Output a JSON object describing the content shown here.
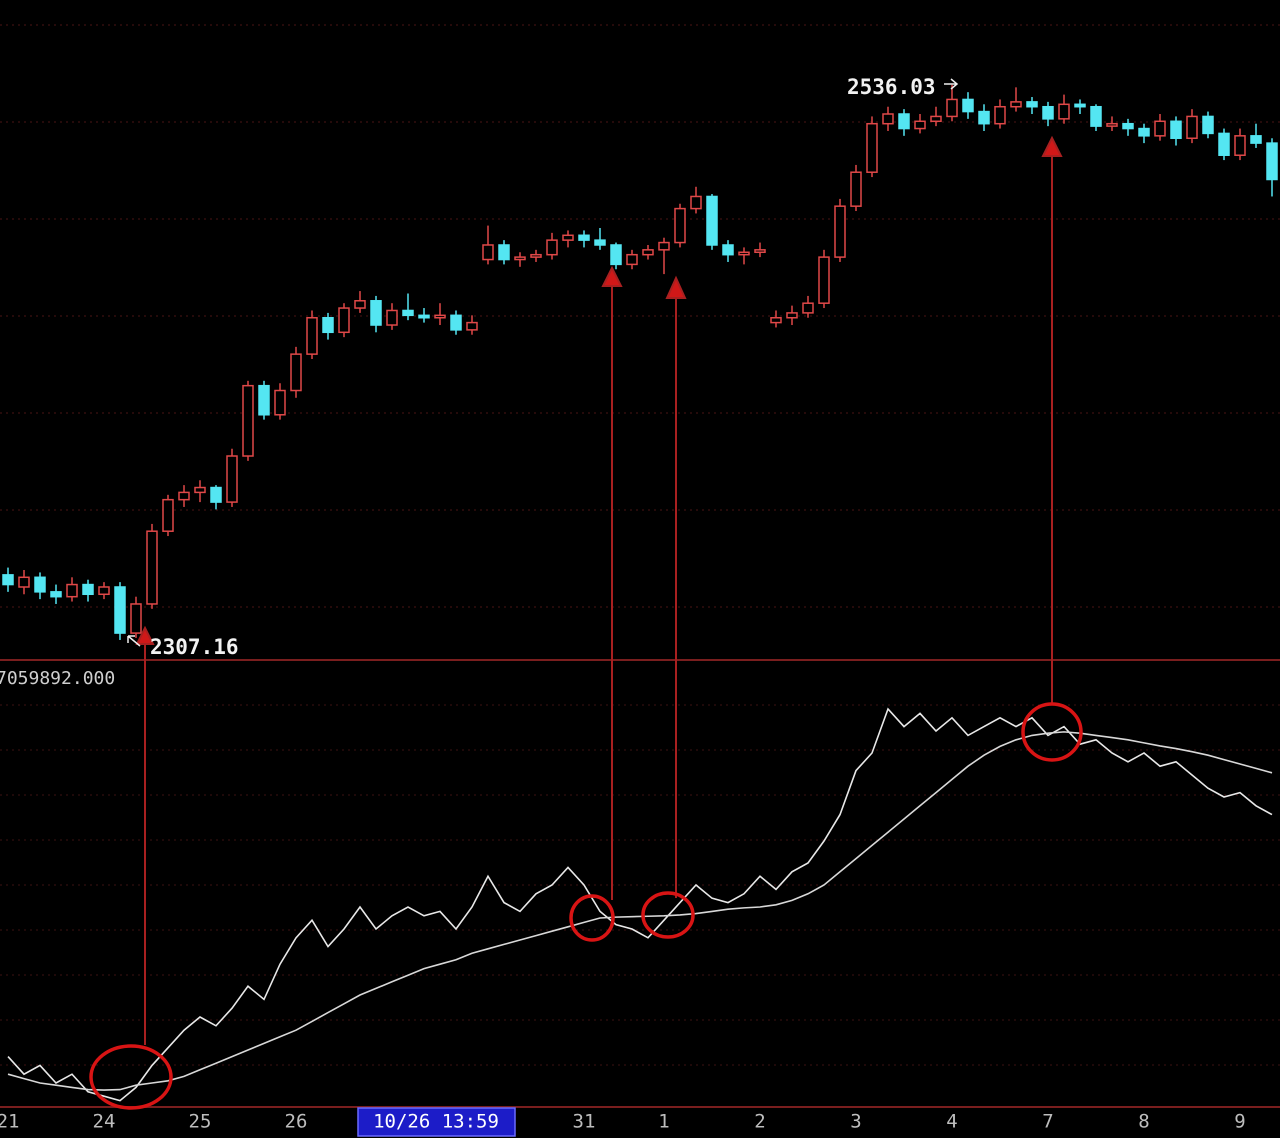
{
  "chart_data": {
    "type": "candlestick",
    "ylim": [
      2298.9,
      2571
    ],
    "y2lim": [
      0,
      100
    ],
    "up_color": "#e04848",
    "down_color": "#54e6f2",
    "categories": [
      "21",
      null,
      null,
      null,
      null,
      null,
      "24",
      null,
      null,
      null,
      null,
      null,
      "25",
      null,
      null,
      null,
      null,
      null,
      "26",
      null,
      null,
      null,
      null,
      null,
      null,
      null,
      null,
      null,
      null,
      null,
      null,
      null,
      null,
      null,
      null,
      null,
      "31",
      null,
      null,
      null,
      null,
      "1",
      null,
      null,
      null,
      null,
      null,
      "2",
      null,
      null,
      null,
      null,
      null,
      "3",
      null,
      null,
      null,
      null,
      null,
      "4",
      null,
      null,
      null,
      null,
      null,
      "7",
      null,
      null,
      null,
      null,
      null,
      "8",
      null,
      null,
      null,
      null,
      null,
      "9",
      null,
      null
    ],
    "cursor_label": "10/26 13:59",
    "indicator_readout": "7059892.000",
    "ohlc": [
      [
        2334,
        2337,
        2327,
        2330
      ],
      [
        2329,
        2336,
        2326,
        2333
      ],
      [
        2333,
        2335,
        2324,
        2327
      ],
      [
        2327,
        2330,
        2322,
        2325
      ],
      [
        2325,
        2333,
        2323,
        2330
      ],
      [
        2330,
        2332,
        2323,
        2326
      ],
      [
        2326,
        2331,
        2324,
        2329
      ],
      [
        2329,
        2331,
        2307.16,
        2310
      ],
      [
        2310,
        2325,
        2308,
        2322
      ],
      [
        2322,
        2355,
        2320,
        2352
      ],
      [
        2352,
        2367,
        2350,
        2365
      ],
      [
        2365,
        2371,
        2362,
        2368
      ],
      [
        2368,
        2373,
        2364,
        2370
      ],
      [
        2370,
        2371,
        2361,
        2364
      ],
      [
        2364,
        2386,
        2362,
        2383
      ],
      [
        2383,
        2414,
        2381,
        2412
      ],
      [
        2412,
        2414,
        2398,
        2400
      ],
      [
        2400,
        2413,
        2398,
        2410
      ],
      [
        2410,
        2428,
        2407,
        2425
      ],
      [
        2425,
        2443,
        2423,
        2440
      ],
      [
        2440,
        2442,
        2431,
        2434
      ],
      [
        2434,
        2446,
        2432,
        2444
      ],
      [
        2444,
        2451,
        2442,
        2447
      ],
      [
        2447,
        2449,
        2434,
        2437
      ],
      [
        2437,
        2446,
        2435,
        2443
      ],
      [
        2443,
        2450,
        2439,
        2441
      ],
      [
        2441,
        2444,
        2438,
        2440
      ],
      [
        2440,
        2446,
        2437,
        2441
      ],
      [
        2441,
        2443,
        2433,
        2435
      ],
      [
        2435,
        2441,
        2433,
        2438
      ],
      [
        2464,
        2478,
        2462,
        2470
      ],
      [
        2470,
        2472,
        2462,
        2464
      ],
      [
        2464,
        2467,
        2461,
        2465
      ],
      [
        2465,
        2468,
        2463,
        2466
      ],
      [
        2466,
        2475,
        2464,
        2472
      ],
      [
        2472,
        2476,
        2469,
        2474
      ],
      [
        2474,
        2476,
        2469,
        2472
      ],
      [
        2472,
        2477,
        2468,
        2470
      ],
      [
        2470,
        2471,
        2460,
        2462
      ],
      [
        2462,
        2468,
        2460,
        2466
      ],
      [
        2466,
        2470,
        2464,
        2468
      ],
      [
        2468,
        2473,
        2458,
        2471
      ],
      [
        2471,
        2487,
        2469,
        2485
      ],
      [
        2485,
        2494,
        2483,
        2490
      ],
      [
        2490,
        2491,
        2468,
        2470
      ],
      [
        2470,
        2472,
        2463,
        2466
      ],
      [
        2466,
        2469,
        2462,
        2467
      ],
      [
        2467,
        2471,
        2465,
        2468
      ],
      [
        2438,
        2443,
        2436,
        2440
      ],
      [
        2440,
        2445,
        2437,
        2442
      ],
      [
        2442,
        2449,
        2440,
        2446
      ],
      [
        2446,
        2468,
        2444,
        2465
      ],
      [
        2465,
        2489,
        2463,
        2486
      ],
      [
        2486,
        2503,
        2484,
        2500
      ],
      [
        2500,
        2523,
        2498,
        2520
      ],
      [
        2520,
        2527,
        2517,
        2524
      ],
      [
        2524,
        2526,
        2515,
        2518
      ],
      [
        2518,
        2524,
        2516,
        2521
      ],
      [
        2521,
        2527,
        2519,
        2523
      ],
      [
        2523,
        2536.03,
        2521,
        2530
      ],
      [
        2530,
        2533,
        2522,
        2525
      ],
      [
        2525,
        2528,
        2517,
        2520
      ],
      [
        2520,
        2530,
        2518,
        2527
      ],
      [
        2527,
        2535,
        2525,
        2529
      ],
      [
        2529,
        2531,
        2524,
        2527
      ],
      [
        2527,
        2529,
        2519,
        2522
      ],
      [
        2522,
        2532,
        2520,
        2528
      ],
      [
        2528,
        2530,
        2524,
        2527
      ],
      [
        2527,
        2528,
        2517,
        2519
      ],
      [
        2519,
        2523,
        2517,
        2520
      ],
      [
        2520,
        2522,
        2515,
        2518
      ],
      [
        2518,
        2520,
        2512,
        2515
      ],
      [
        2515,
        2524,
        2513,
        2521
      ],
      [
        2521,
        2523,
        2511,
        2514
      ],
      [
        2514,
        2526,
        2512,
        2523
      ],
      [
        2523,
        2525,
        2514,
        2516
      ],
      [
        2516,
        2518,
        2505,
        2507
      ],
      [
        2507,
        2518,
        2505,
        2515
      ],
      [
        2515,
        2520,
        2510,
        2512
      ],
      [
        2512,
        2514,
        2490,
        2497
      ]
    ],
    "series": [
      {
        "axis": "y2",
        "color": "#e8e8e8",
        "values": [
          11,
          7,
          9,
          5,
          7,
          3,
          2,
          1,
          4,
          9,
          13,
          17,
          20,
          18,
          22,
          27,
          24,
          32,
          38,
          42,
          36,
          40,
          45,
          40,
          43,
          45,
          43,
          44,
          40,
          45,
          52,
          46,
          44,
          48,
          50,
          54,
          50,
          44,
          41,
          40,
          38,
          42,
          46,
          50,
          47,
          46,
          48,
          52,
          49,
          53,
          55,
          60,
          66,
          76,
          80,
          90,
          86,
          89,
          85,
          88,
          84,
          86,
          88,
          86,
          88,
          84,
          86,
          82,
          83,
          80,
          78,
          80,
          77,
          78,
          75,
          72,
          70,
          71,
          68,
          66
        ]
      },
      {
        "axis": "y2",
        "color": "#d8d8d8",
        "values": [
          7,
          6,
          5,
          4.5,
          4,
          3.5,
          3.4,
          3.5,
          4.5,
          5,
          5.5,
          6.5,
          8,
          9.5,
          11,
          12.5,
          14,
          15.5,
          17,
          19,
          21,
          23,
          25,
          26.5,
          28,
          29.5,
          31,
          32,
          33,
          34.5,
          35.5,
          36.5,
          37.5,
          38.5,
          39.5,
          40.5,
          41.5,
          42.5,
          42.7,
          42.8,
          42.9,
          43,
          43.2,
          43.5,
          44,
          44.5,
          44.8,
          45,
          45.5,
          46.5,
          48,
          50,
          53,
          56,
          59,
          62,
          65,
          68,
          71,
          74,
          77,
          79.5,
          81.5,
          83,
          84,
          84.5,
          84.8,
          84.5,
          84,
          83.5,
          83,
          82.3,
          81.6,
          81,
          80.3,
          79.5,
          78.5,
          77.5,
          76.5,
          75.5
        ]
      }
    ]
  }
}
